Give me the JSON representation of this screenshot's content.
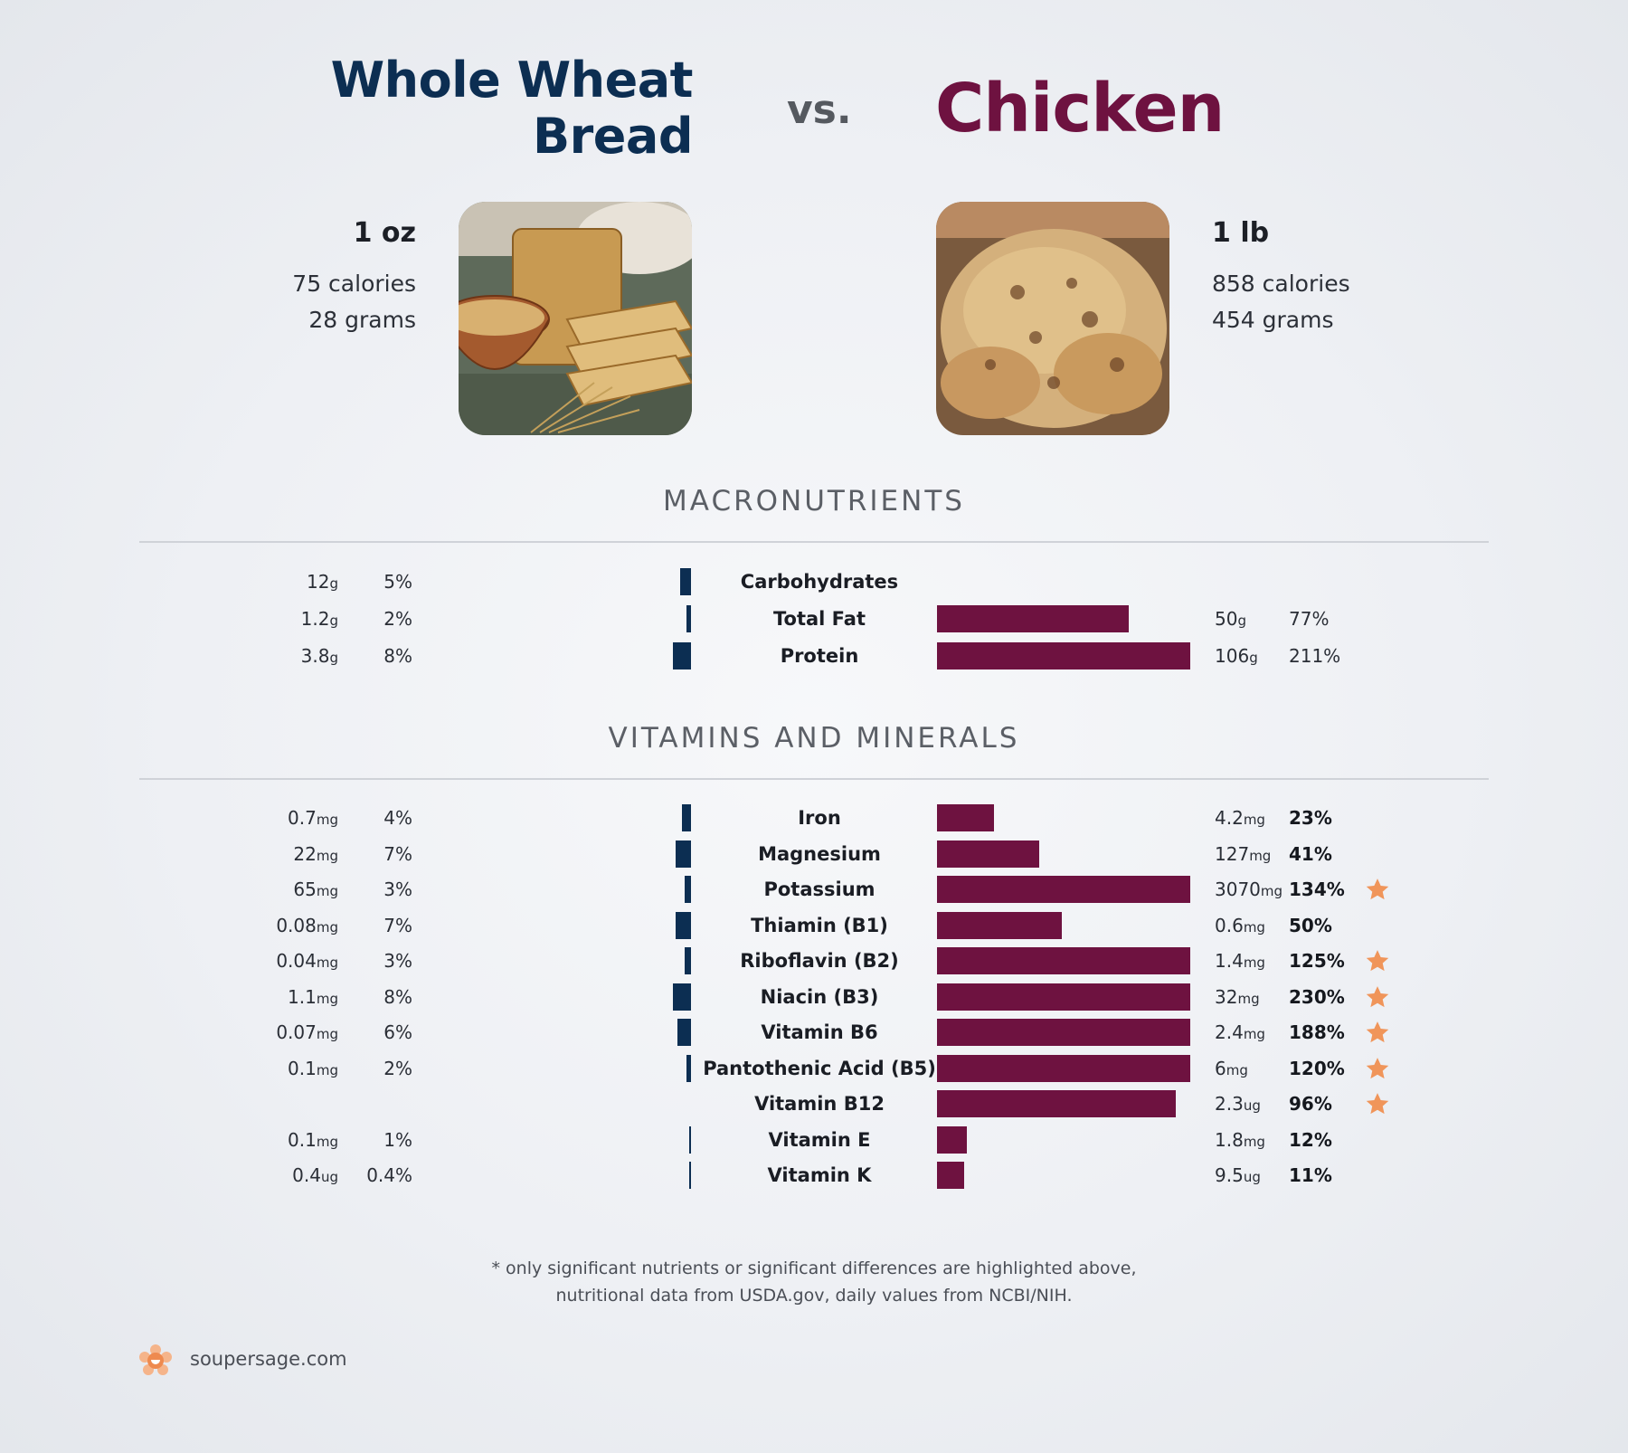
{
  "header": {
    "left_title_line1": "Whole Wheat",
    "left_title_line2": "Bread",
    "vs_label": "vs.",
    "right_title": "Chicken"
  },
  "left_food": {
    "serving": "1 oz",
    "calories": "75 calories",
    "grams": "28 grams",
    "image_icon": "bread-photo-icon"
  },
  "right_food": {
    "serving": "1 lb",
    "calories": "858 calories",
    "grams": "454 grams",
    "image_icon": "roast-chicken-photo-icon"
  },
  "sections": {
    "macros_title": "MACRONUTRIENTS",
    "vitamins_title": "VITAMINS AND MINERALS"
  },
  "footnote": {
    "line1": "* only significant nutrients or significant differences are highlighted above,",
    "line2": "nutritional data from USDA.gov, daily values from NCBI/NIH."
  },
  "brand": {
    "site": "soupersage.com",
    "logo_icon": "soupersage-logo-icon"
  },
  "colors": {
    "left_bar": "#0c2e52",
    "right_bar": "#6e1240",
    "star": "#f0955a"
  },
  "chart_data": [
    {
      "type": "bar",
      "section": "MACRONUTRIENTS",
      "series": [
        {
          "name": "Whole Wheat Bread"
        },
        {
          "name": "Chicken"
        }
      ],
      "rows": [
        {
          "nutrient": "Carbohydrates",
          "left_amount": "12",
          "left_unit": "g",
          "left_pct_label": "5%",
          "left_pct": 5,
          "right_amount": "",
          "right_unit": "",
          "right_pct_label": "",
          "right_pct": 0,
          "star": false,
          "right_bold": false
        },
        {
          "nutrient": "Total Fat",
          "left_amount": "1.2",
          "left_unit": "g",
          "left_pct_label": "2%",
          "left_pct": 2,
          "right_amount": "50",
          "right_unit": "g",
          "right_pct_label": "77%",
          "right_pct": 77,
          "star": false,
          "right_bold": false
        },
        {
          "nutrient": "Protein",
          "left_amount": "3.8",
          "left_unit": "g",
          "left_pct_label": "8%",
          "left_pct": 8,
          "right_amount": "106",
          "right_unit": "g",
          "right_pct_label": "211%",
          "right_pct": 211,
          "star": false,
          "right_bold": false
        }
      ]
    },
    {
      "type": "bar",
      "section": "VITAMINS AND MINERALS",
      "series": [
        {
          "name": "Whole Wheat Bread"
        },
        {
          "name": "Chicken"
        }
      ],
      "rows": [
        {
          "nutrient": "Iron",
          "left_amount": "0.7",
          "left_unit": "mg",
          "left_pct_label": "4%",
          "left_pct": 4,
          "right_amount": "4.2",
          "right_unit": "mg",
          "right_pct_label": "23%",
          "right_pct": 23,
          "star": false,
          "right_bold": true
        },
        {
          "nutrient": "Magnesium",
          "left_amount": "22",
          "left_unit": "mg",
          "left_pct_label": "7%",
          "left_pct": 7,
          "right_amount": "127",
          "right_unit": "mg",
          "right_pct_label": "41%",
          "right_pct": 41,
          "star": false,
          "right_bold": true
        },
        {
          "nutrient": "Potassium",
          "left_amount": "65",
          "left_unit": "mg",
          "left_pct_label": "3%",
          "left_pct": 3,
          "right_amount": "3070",
          "right_unit": "mg",
          "right_pct_label": "134%",
          "right_pct": 134,
          "star": true,
          "right_bold": true
        },
        {
          "nutrient": "Thiamin (B1)",
          "left_amount": "0.08",
          "left_unit": "mg",
          "left_pct_label": "7%",
          "left_pct": 7,
          "right_amount": "0.6",
          "right_unit": "mg",
          "right_pct_label": "50%",
          "right_pct": 50,
          "star": false,
          "right_bold": true
        },
        {
          "nutrient": "Riboflavin (B2)",
          "left_amount": "0.04",
          "left_unit": "mg",
          "left_pct_label": "3%",
          "left_pct": 3,
          "right_amount": "1.4",
          "right_unit": "mg",
          "right_pct_label": "125%",
          "right_pct": 125,
          "star": true,
          "right_bold": true
        },
        {
          "nutrient": "Niacin (B3)",
          "left_amount": "1.1",
          "left_unit": "mg",
          "left_pct_label": "8%",
          "left_pct": 8,
          "right_amount": "32",
          "right_unit": "mg",
          "right_pct_label": "230%",
          "right_pct": 230,
          "star": true,
          "right_bold": true
        },
        {
          "nutrient": "Vitamin B6",
          "left_amount": "0.07",
          "left_unit": "mg",
          "left_pct_label": "6%",
          "left_pct": 6,
          "right_amount": "2.4",
          "right_unit": "mg",
          "right_pct_label": "188%",
          "right_pct": 188,
          "star": true,
          "right_bold": true
        },
        {
          "nutrient": "Pantothenic Acid (B5)",
          "left_amount": "0.1",
          "left_unit": "mg",
          "left_pct_label": "2%",
          "left_pct": 2,
          "right_amount": "6",
          "right_unit": "mg",
          "right_pct_label": "120%",
          "right_pct": 120,
          "star": true,
          "right_bold": true
        },
        {
          "nutrient": "Vitamin B12",
          "left_amount": "",
          "left_unit": "",
          "left_pct_label": "",
          "left_pct": 0,
          "right_amount": "2.3",
          "right_unit": "ug",
          "right_pct_label": "96%",
          "right_pct": 96,
          "star": true,
          "right_bold": true
        },
        {
          "nutrient": "Vitamin E",
          "left_amount": "0.1",
          "left_unit": "mg",
          "left_pct_label": "1%",
          "left_pct": 1,
          "right_amount": "1.8",
          "right_unit": "mg",
          "right_pct_label": "12%",
          "right_pct": 12,
          "star": false,
          "right_bold": true
        },
        {
          "nutrient": "Vitamin K",
          "left_amount": "0.4",
          "left_unit": "ug",
          "left_pct_label": "0.4%",
          "left_pct": 0.4,
          "right_amount": "9.5",
          "right_unit": "ug",
          "right_pct_label": "11%",
          "right_pct": 11,
          "star": false,
          "right_bold": true
        }
      ]
    }
  ]
}
